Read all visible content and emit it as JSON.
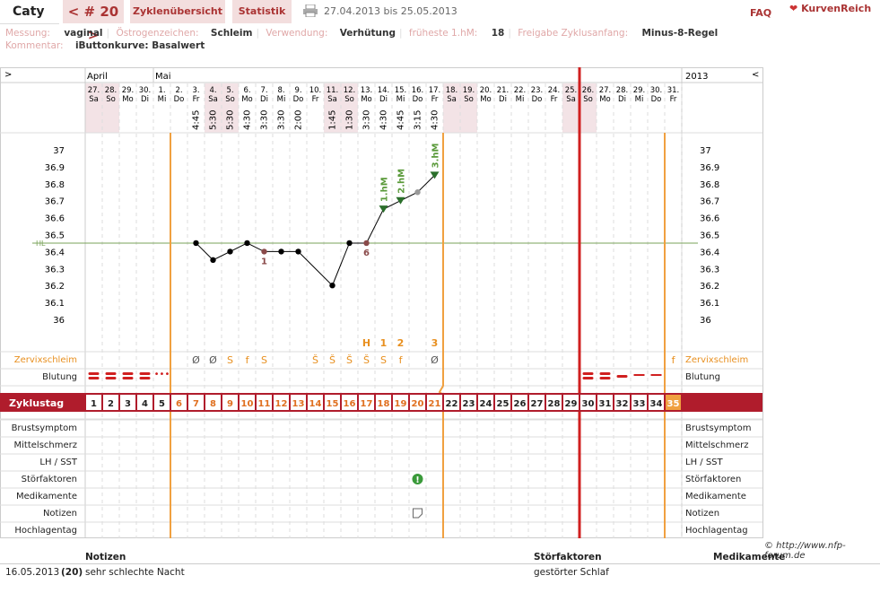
{
  "header": {
    "name": "Caty",
    "cycle": "< # 20 >",
    "tab_overview": "Zyklenübersicht",
    "tab_stats": "Statistik",
    "date_range": "27.04.2013 bis 25.05.2013",
    "faq": "FAQ",
    "logo": "KurvenReich"
  },
  "info1": {
    "messung_label": "Messung:",
    "messung": "vaginal",
    "oestrogen_label": "Östrogenzeichen:",
    "oestrogen": "Schleim",
    "verwendung_label": "Verwendung:",
    "verwendung": "Verhütung",
    "hm_label": "früheste 1.hM:",
    "hm": "18",
    "freigabe_label": "Freigabe Zyklusanfang:",
    "freigabe": "Minus-8-Regel"
  },
  "info2": {
    "kommentar_label": "Kommentar:",
    "kommentar": "iButtonkurve: Basalwert"
  },
  "chart_nav": {
    "left": ">",
    "right": "<",
    "year": "2013",
    "month1": "April",
    "month2": "Mai"
  },
  "days": [
    {
      "d": "27.",
      "w": "Sa",
      "t": ""
    },
    {
      "d": "28.",
      "w": "So",
      "t": ""
    },
    {
      "d": "29.",
      "w": "Mo",
      "t": ""
    },
    {
      "d": "30.",
      "w": "Di",
      "t": ""
    },
    {
      "d": "1.",
      "w": "Mi",
      "t": ""
    },
    {
      "d": "2.",
      "w": "Do",
      "t": ""
    },
    {
      "d": "3.",
      "w": "Fr",
      "t": "4:45"
    },
    {
      "d": "4.",
      "w": "Sa",
      "t": "5:30"
    },
    {
      "d": "5.",
      "w": "So",
      "t": "5:30"
    },
    {
      "d": "6.",
      "w": "Mo",
      "t": "4:30"
    },
    {
      "d": "7.",
      "w": "Di",
      "t": "3:30"
    },
    {
      "d": "8.",
      "w": "Mi",
      "t": "3:30"
    },
    {
      "d": "9.",
      "w": "Do",
      "t": "2:00"
    },
    {
      "d": "10.",
      "w": "Fr",
      "t": ""
    },
    {
      "d": "11.",
      "w": "Sa",
      "t": "1:45"
    },
    {
      "d": "12.",
      "w": "So",
      "t": "1:30"
    },
    {
      "d": "13.",
      "w": "Mo",
      "t": "3:30"
    },
    {
      "d": "14.",
      "w": "Di",
      "t": "4:30"
    },
    {
      "d": "15.",
      "w": "Mi",
      "t": "4:45"
    },
    {
      "d": "16.",
      "w": "Do",
      "t": "3:15"
    },
    {
      "d": "17.",
      "w": "Fr",
      "t": "4:30"
    },
    {
      "d": "18.",
      "w": "Sa",
      "t": ""
    },
    {
      "d": "19.",
      "w": "So",
      "t": ""
    },
    {
      "d": "20.",
      "w": "Mo",
      "t": ""
    },
    {
      "d": "21.",
      "w": "Di",
      "t": ""
    },
    {
      "d": "22.",
      "w": "Mi",
      "t": ""
    },
    {
      "d": "23.",
      "w": "Do",
      "t": ""
    },
    {
      "d": "24.",
      "w": "Fr",
      "t": ""
    },
    {
      "d": "25.",
      "w": "Sa",
      "t": ""
    },
    {
      "d": "26.",
      "w": "So",
      "t": ""
    },
    {
      "d": "27.",
      "w": "Mo",
      "t": ""
    },
    {
      "d": "28.",
      "w": "Di",
      "t": ""
    },
    {
      "d": "29.",
      "w": "Mi",
      "t": ""
    },
    {
      "d": "30.",
      "w": "Do",
      "t": ""
    },
    {
      "d": "31.",
      "w": "Fr",
      "t": ""
    }
  ],
  "temp_axis": [
    "37",
    "36.9",
    "36.8",
    "36.7",
    "36.6",
    "36.5",
    "36.4",
    "36.3",
    "36.2",
    "36.1",
    "36"
  ],
  "hl_label": "HL",
  "temps": [
    {
      "day": 7,
      "v": 36.45
    },
    {
      "day": 8,
      "v": 36.35
    },
    {
      "day": 9,
      "v": 36.4
    },
    {
      "day": 10,
      "v": 36.45
    },
    {
      "day": 11,
      "v": 36.4,
      "mark": "1"
    },
    {
      "day": 12,
      "v": 36.4
    },
    {
      "day": 13,
      "v": 36.4
    },
    {
      "day": 15,
      "v": 36.2
    },
    {
      "day": 16,
      "v": 36.45
    },
    {
      "day": 17,
      "v": 36.45,
      "mark": "6"
    },
    {
      "day": 18,
      "v": 36.65,
      "hm": "1.hM"
    },
    {
      "day": 19,
      "v": 36.7,
      "hm": "2.hM"
    },
    {
      "day": 20,
      "v": 36.75
    },
    {
      "day": 21,
      "v": 36.85,
      "hm": "3.hM"
    }
  ],
  "hl_value": 36.45,
  "cervix_marks": [
    "",
    "",
    "",
    "",
    "",
    "",
    "Ø",
    "Ø",
    "S",
    "f",
    "S",
    "",
    "",
    "Š",
    "Š",
    "Š",
    "Š",
    "S",
    "f",
    "",
    "Ø",
    "",
    "",
    "",
    "",
    "",
    "",
    "",
    "",
    "",
    "",
    "",
    "",
    "",
    "f"
  ],
  "cervix_top": {
    "17": "H",
    "18": "1",
    "19": "2",
    "21": "3"
  },
  "bleeding": [
    "heavy",
    "heavy",
    "heavy",
    "heavy",
    "spot",
    "",
    "",
    "",
    "",
    "",
    "",
    "",
    "",
    "",
    "",
    "",
    "",
    "",
    "",
    "",
    "",
    "",
    "",
    "",
    "",
    "",
    "",
    "",
    "",
    "heavy",
    "heavy",
    "medium",
    "light",
    "light",
    ""
  ],
  "rows_left": {
    "cervix": "Zervixschleim",
    "blutung": "Blutung",
    "zyklustag": "Zyklustag",
    "brust": "Brustsymptom",
    "mittel": "Mittelschmerz",
    "lh": "LH / SST",
    "stoer": "Störfaktoren",
    "medi": "Medikamente",
    "notizen": "Notizen",
    "hoch": "Hochlagentag"
  },
  "copyright": "© http://www.nfp-forum.de",
  "notes": {
    "h_notizen": "Notizen",
    "h_stoer": "Störfaktoren",
    "h_medi": "Medikamente",
    "date": "16.05.2013",
    "num": "(20)",
    "text": "sehr schlechte Nacht",
    "stoer": "gestörter Schlaf"
  }
}
